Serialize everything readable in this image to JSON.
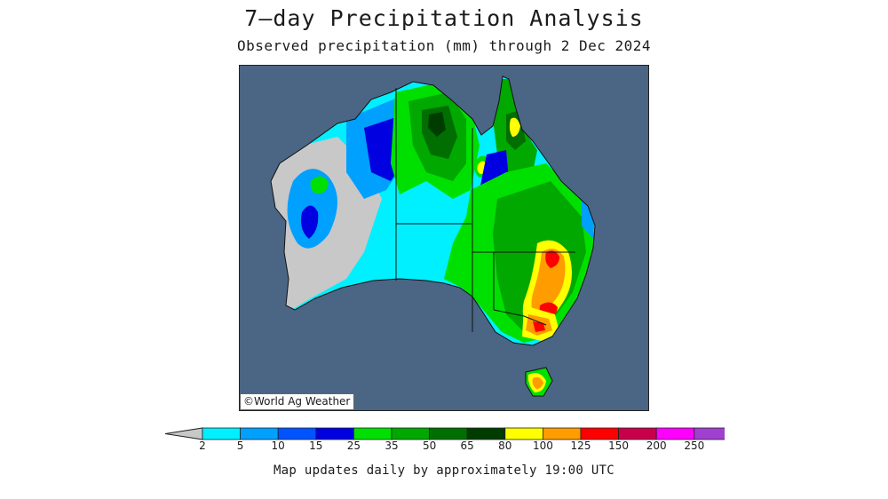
{
  "title": "7—day Precipitation Analysis",
  "subtitle": "Observed precipitation (mm) through 2 Dec 2024",
  "credit": "©World Ag Weather",
  "footer": "Map updates daily by approximately 19:00 UTC",
  "colors": {
    "ocean": "#4b6584",
    "below_2": "#c8c8c8",
    "c2": "#00f0ff",
    "c5": "#00a0ff",
    "c10": "#0054ff",
    "c15": "#0000e0",
    "c25": "#00e000",
    "c35": "#00a800",
    "c50": "#006e00",
    "c65": "#003c00",
    "c80": "#ffff00",
    "c100": "#ff9c00",
    "c125": "#ff0000",
    "c150": "#c8004b",
    "c200": "#ff00ff",
    "c250": "#a040d0"
  },
  "legend": {
    "labels": [
      "2",
      "5",
      "10",
      "15",
      "25",
      "35",
      "50",
      "65",
      "80",
      "100",
      "125",
      "150",
      "200",
      "250"
    ],
    "bins": [
      {
        "from": "2",
        "to": "5",
        "color": "#00f0ff"
      },
      {
        "from": "5",
        "to": "10",
        "color": "#00a0ff"
      },
      {
        "from": "10",
        "to": "15",
        "color": "#0054ff"
      },
      {
        "from": "15",
        "to": "25",
        "color": "#0000e0"
      },
      {
        "from": "25",
        "to": "35",
        "color": "#00e000"
      },
      {
        "from": "35",
        "to": "50",
        "color": "#00a800"
      },
      {
        "from": "50",
        "to": "65",
        "color": "#006e00"
      },
      {
        "from": "65",
        "to": "80",
        "color": "#003c00"
      },
      {
        "from": "80",
        "to": "100",
        "color": "#ffff00"
      },
      {
        "from": "100",
        "to": "125",
        "color": "#ff9c00"
      },
      {
        "from": "125",
        "to": "150",
        "color": "#ff0000"
      },
      {
        "from": "150",
        "to": "200",
        "color": "#c8004b"
      },
      {
        "from": "200",
        "to": "250",
        "color": "#ff00ff"
      },
      {
        "from": "250",
        "to": "",
        "color": "#a040d0"
      }
    ],
    "under_color": "#c8c8c8",
    "over_color": "#ffffff"
  }
}
